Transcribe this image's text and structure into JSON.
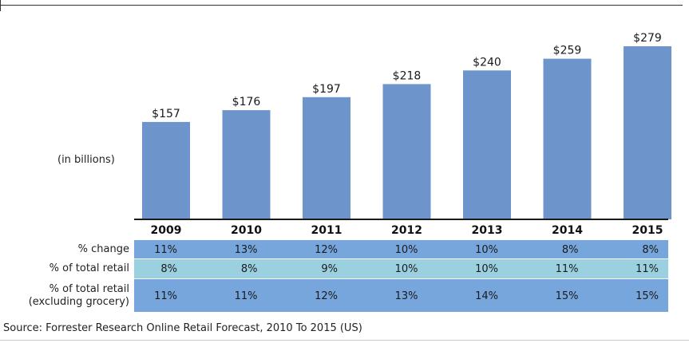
{
  "chart_data": {
    "type": "bar",
    "categories": [
      "2009",
      "2010",
      "2011",
      "2012",
      "2013",
      "2014",
      "2015"
    ],
    "values": [
      157,
      176,
      197,
      218,
      240,
      259,
      279
    ],
    "value_labels": [
      "$157",
      "$176",
      "$197",
      "$218",
      "$240",
      "$259",
      "$279"
    ],
    "ylabel": "(in billions)",
    "ylim": [
      0,
      300
    ],
    "grid": false,
    "bar_color": "#6e95cb",
    "table": {
      "rows": [
        {
          "label": [
            "% change"
          ],
          "values": [
            "11%",
            "13%",
            "12%",
            "10%",
            "10%",
            "8%",
            "8%"
          ],
          "color": "#77a6dc"
        },
        {
          "label": [
            "% of total retail"
          ],
          "values": [
            "8%",
            "8%",
            "9%",
            "10%",
            "10%",
            "11%",
            "11%"
          ],
          "color": "#9bd0e0"
        },
        {
          "label": [
            "% of total retail",
            "(excluding grocery)"
          ],
          "values": [
            "11%",
            "11%",
            "12%",
            "13%",
            "14%",
            "15%",
            "15%"
          ],
          "color": "#77a6dc"
        }
      ]
    }
  },
  "source": "Source: Forrester Research Online Retail Forecast, 2010 To 2015 (US)"
}
